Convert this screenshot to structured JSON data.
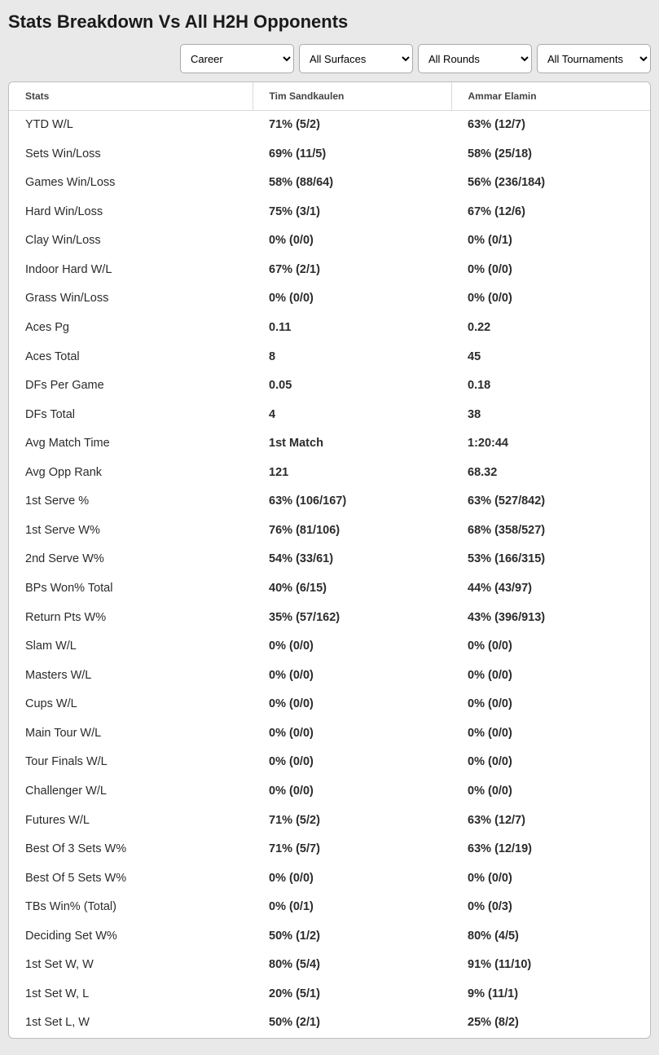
{
  "title": "Stats Breakdown Vs All H2H Opponents",
  "filters": {
    "career": {
      "selected": "Career",
      "options": [
        "Career"
      ]
    },
    "surface": {
      "selected": "All Surfaces",
      "options": [
        "All Surfaces"
      ]
    },
    "round": {
      "selected": "All Rounds",
      "options": [
        "All Rounds"
      ]
    },
    "tournament": {
      "selected": "All Tournaments",
      "options": [
        "All Tournaments"
      ]
    }
  },
  "table": {
    "columns": [
      "Stats",
      "Tim Sandkaulen",
      "Ammar Elamin"
    ],
    "rows": [
      [
        "YTD W/L",
        "71% (5/2)",
        "63% (12/7)"
      ],
      [
        "Sets Win/Loss",
        "69% (11/5)",
        "58% (25/18)"
      ],
      [
        "Games Win/Loss",
        "58% (88/64)",
        "56% (236/184)"
      ],
      [
        "Hard Win/Loss",
        "75% (3/1)",
        "67% (12/6)"
      ],
      [
        "Clay Win/Loss",
        "0% (0/0)",
        "0% (0/1)"
      ],
      [
        "Indoor Hard W/L",
        "67% (2/1)",
        "0% (0/0)"
      ],
      [
        "Grass Win/Loss",
        "0% (0/0)",
        "0% (0/0)"
      ],
      [
        "Aces Pg",
        "0.11",
        "0.22"
      ],
      [
        "Aces Total",
        "8",
        "45"
      ],
      [
        "DFs Per Game",
        "0.05",
        "0.18"
      ],
      [
        "DFs Total",
        "4",
        "38"
      ],
      [
        "Avg Match Time",
        "1st Match",
        "1:20:44"
      ],
      [
        "Avg Opp Rank",
        "121",
        "68.32"
      ],
      [
        "1st Serve %",
        "63% (106/167)",
        "63% (527/842)"
      ],
      [
        "1st Serve W%",
        "76% (81/106)",
        "68% (358/527)"
      ],
      [
        "2nd Serve W%",
        "54% (33/61)",
        "53% (166/315)"
      ],
      [
        "BPs Won% Total",
        "40% (6/15)",
        "44% (43/97)"
      ],
      [
        "Return Pts W%",
        "35% (57/162)",
        "43% (396/913)"
      ],
      [
        "Slam W/L",
        "0% (0/0)",
        "0% (0/0)"
      ],
      [
        "Masters W/L",
        "0% (0/0)",
        "0% (0/0)"
      ],
      [
        "Cups W/L",
        "0% (0/0)",
        "0% (0/0)"
      ],
      [
        "Main Tour W/L",
        "0% (0/0)",
        "0% (0/0)"
      ],
      [
        "Tour Finals W/L",
        "0% (0/0)",
        "0% (0/0)"
      ],
      [
        "Challenger W/L",
        "0% (0/0)",
        "0% (0/0)"
      ],
      [
        "Futures W/L",
        "71% (5/2)",
        "63% (12/7)"
      ],
      [
        "Best Of 3 Sets W%",
        "71% (5/7)",
        "63% (12/19)"
      ],
      [
        "Best Of 5 Sets W%",
        "0% (0/0)",
        "0% (0/0)"
      ],
      [
        "TBs Win% (Total)",
        "0% (0/1)",
        "0% (0/3)"
      ],
      [
        "Deciding Set W%",
        "50% (1/2)",
        "80% (4/5)"
      ],
      [
        "1st Set W, W",
        "80% (5/4)",
        "91% (11/10)"
      ],
      [
        "1st Set W, L",
        "20% (5/1)",
        "9% (11/1)"
      ],
      [
        "1st Set L, W",
        "50% (2/1)",
        "25% (8/2)"
      ]
    ]
  },
  "colors": {
    "page_bg": "#e9e9e9",
    "card_bg": "#ffffff",
    "border": "#bdbdbd",
    "header_divider": "#d9d9d9",
    "text": "#2b2b2b"
  }
}
